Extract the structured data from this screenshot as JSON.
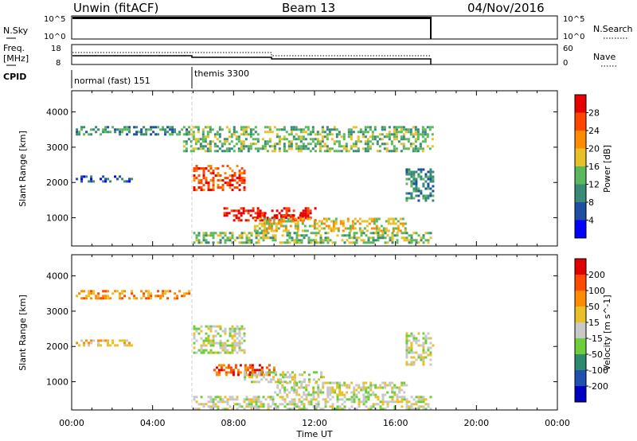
{
  "header": {
    "station": "Unwin (fitACF)",
    "beam": "Beam 13",
    "date": "04/Nov/2016"
  },
  "nsky_panel": {
    "left_label": "N.Sky",
    "left_ticks": [
      "10^5",
      "10^0"
    ],
    "right_ticks": [
      "10^5",
      "10^0"
    ],
    "right_label": "N.Search"
  },
  "freq_panel": {
    "label_line1": "Freq.",
    "label_line2": "[MHz]",
    "left_ticks": [
      "18",
      "8"
    ],
    "right_ticks": [
      "60",
      "0"
    ],
    "right_label": "Nave"
  },
  "cpid_panel": {
    "label": "CPID",
    "modes": [
      {
        "name": "normal (fast) 151",
        "start": "00:00",
        "end": "06:00"
      },
      {
        "name": "themis 3300",
        "start": "06:00",
        "end": "18:00"
      }
    ]
  },
  "colors": {
    "power_scale": [
      "#0000ff",
      "#1f4fa0",
      "#3a8a78",
      "#5cb85c",
      "#e8c02a",
      "#ff8c00",
      "#ff4500",
      "#e80000"
    ],
    "velocity_scale": [
      "#0000c0",
      "#2050b0",
      "#2c8a6e",
      "#6ccf3a",
      "#c8c8c8",
      "#e8c02a",
      "#ff8c00",
      "#ff4a00",
      "#e00000"
    ]
  },
  "chart_data": [
    {
      "type": "heatmap",
      "panel": "power",
      "ylabel": "Slant Range [km]",
      "xlabel": "Time UT",
      "ylim": [
        200,
        4600
      ],
      "xlim": [
        "00:00",
        "24:00"
      ],
      "yticks": [
        "1000",
        "2000",
        "3000",
        "4000"
      ],
      "xticks": [
        "00:00",
        "04:00",
        "08:00",
        "12:00",
        "16:00",
        "20:00",
        "00:00"
      ],
      "colorbar_label": "Power [dB]",
      "colorbar_ticks": [
        "28",
        "24",
        "20",
        "16",
        "12",
        "8",
        "4"
      ],
      "regions": [
        {
          "t0": 0.2,
          "t1": 5.8,
          "r0": 3350,
          "r1": 3600,
          "level": 2
        },
        {
          "t0": 0.2,
          "t1": 3.0,
          "r0": 2000,
          "r1": 2200,
          "level": 1
        },
        {
          "t0": 5.5,
          "t1": 17.8,
          "r0": 2900,
          "r1": 3600,
          "level": 3
        },
        {
          "t0": 6.0,
          "t1": 8.5,
          "r0": 1800,
          "r1": 2500,
          "level": 6
        },
        {
          "t0": 7.5,
          "t1": 12.0,
          "r0": 900,
          "r1": 1300,
          "level": 7
        },
        {
          "t0": 9.0,
          "t1": 11.5,
          "r0": 1000,
          "r1": 1100,
          "level": 7
        },
        {
          "t0": 9.0,
          "t1": 16.5,
          "r0": 600,
          "r1": 1000,
          "level": 4
        },
        {
          "t0": 6.0,
          "t1": 17.8,
          "r0": 300,
          "r1": 600,
          "level": 3
        },
        {
          "t0": 16.5,
          "t1": 17.8,
          "r0": 1500,
          "r1": 2400,
          "level": 2
        }
      ]
    },
    {
      "type": "heatmap",
      "panel": "velocity",
      "ylabel": "Slant Range [km]",
      "xlabel": "Time UT",
      "ylim": [
        200,
        4600
      ],
      "xlim": [
        "00:00",
        "24:00"
      ],
      "yticks": [
        "1000",
        "2000",
        "3000",
        "4000"
      ],
      "xticks": [
        "00:00",
        "04:00",
        "08:00",
        "12:00",
        "16:00",
        "20:00",
        "00:00"
      ],
      "colorbar_label": "Velocity [m s^-1]",
      "colorbar_ticks": [
        "200",
        "100",
        "50",
        "15",
        "-15",
        "-50",
        "-100",
        "-200"
      ],
      "regions": [
        {
          "t0": 0.2,
          "t1": 5.8,
          "r0": 3350,
          "r1": 3600,
          "level": 6
        },
        {
          "t0": 0.2,
          "t1": 3.0,
          "r0": 2000,
          "r1": 2200,
          "level": 5
        },
        {
          "t0": 6.0,
          "t1": 8.5,
          "r0": 1800,
          "r1": 2600,
          "level": 4
        },
        {
          "t0": 7.0,
          "t1": 10.0,
          "r0": 1200,
          "r1": 1500,
          "level": 7
        },
        {
          "t0": 8.5,
          "t1": 12.5,
          "r0": 1000,
          "r1": 1300,
          "level": 4
        },
        {
          "t0": 10.0,
          "t1": 16.5,
          "r0": 600,
          "r1": 1000,
          "level": 4
        },
        {
          "t0": 6.0,
          "t1": 17.8,
          "r0": 250,
          "r1": 600,
          "level": 4
        },
        {
          "t0": 16.5,
          "t1": 17.8,
          "r0": 1500,
          "r1": 2400,
          "level": 4
        }
      ]
    }
  ]
}
